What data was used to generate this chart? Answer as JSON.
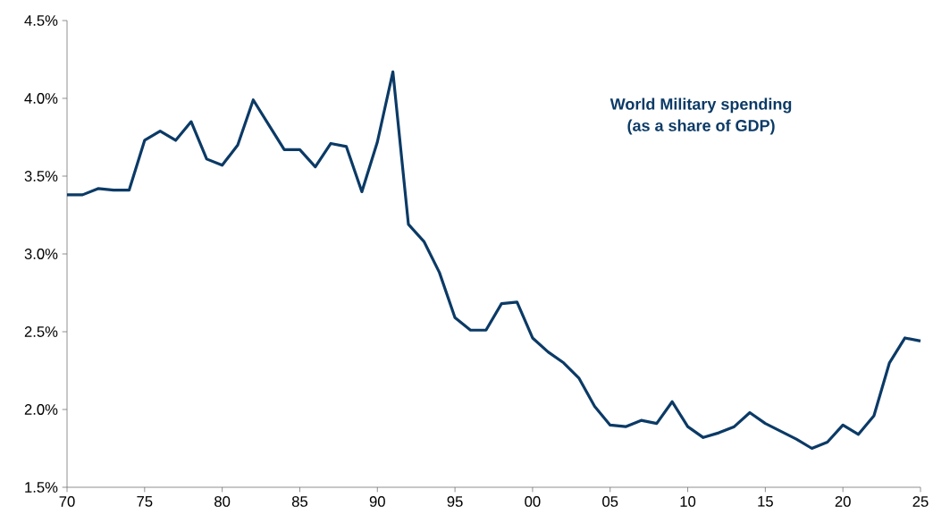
{
  "chart_data": {
    "type": "line",
    "title": "World Military spending",
    "subtitle": "(as a share of GDP)",
    "x": [
      1970,
      1971,
      1972,
      1973,
      1974,
      1975,
      1976,
      1977,
      1978,
      1979,
      1980,
      1981,
      1982,
      1983,
      1984,
      1985,
      1986,
      1987,
      1988,
      1989,
      1990,
      1991,
      1992,
      1993,
      1994,
      1995,
      1996,
      1997,
      1998,
      1999,
      2000,
      2001,
      2002,
      2003,
      2004,
      2005,
      2006,
      2007,
      2008,
      2009,
      2010,
      2011,
      2012,
      2013,
      2014,
      2015,
      2016,
      2017,
      2018,
      2019,
      2020,
      2021,
      2022,
      2023,
      2024,
      2025
    ],
    "series": [
      {
        "color": "#0b3a66",
        "values": [
          3.38,
          3.38,
          3.42,
          3.41,
          3.41,
          3.73,
          3.79,
          3.73,
          3.85,
          3.61,
          3.57,
          3.7,
          3.99,
          3.83,
          3.67,
          3.67,
          3.56,
          3.71,
          3.69,
          3.4,
          3.72,
          4.17,
          3.19,
          3.08,
          2.88,
          2.59,
          2.51,
          2.51,
          2.68,
          2.69,
          2.46,
          2.37,
          2.3,
          2.2,
          2.02,
          1.9,
          1.89,
          1.93,
          1.91,
          2.05,
          1.89,
          1.82,
          1.85,
          1.89,
          1.98,
          1.91,
          1.86,
          1.81,
          1.75,
          1.79,
          1.9,
          1.84,
          1.96,
          2.3,
          2.46,
          2.44
        ]
      }
    ],
    "xlim": [
      1970,
      2025
    ],
    "xticks": [
      {
        "value": 1970,
        "label": "70"
      },
      {
        "value": 1975,
        "label": "75"
      },
      {
        "value": 1980,
        "label": "80"
      },
      {
        "value": 1985,
        "label": "85"
      },
      {
        "value": 1990,
        "label": "90"
      },
      {
        "value": 1995,
        "label": "95"
      },
      {
        "value": 2000,
        "label": "00"
      },
      {
        "value": 2005,
        "label": "05"
      },
      {
        "value": 2010,
        "label": "10"
      },
      {
        "value": 2015,
        "label": "15"
      },
      {
        "value": 2020,
        "label": "20"
      },
      {
        "value": 2025,
        "label": "25"
      }
    ],
    "ylim": [
      1.5,
      4.5
    ],
    "yticks": [
      {
        "value": 1.5,
        "label": "1.5%"
      },
      {
        "value": 2.0,
        "label": "2.0%"
      },
      {
        "value": 2.5,
        "label": "2.5%"
      },
      {
        "value": 3.0,
        "label": "3.0%"
      },
      {
        "value": 3.5,
        "label": "3.5%"
      },
      {
        "value": 4.0,
        "label": "4.0%"
      },
      {
        "value": 4.5,
        "label": "4.5%"
      }
    ],
    "grid": false,
    "marker": "none",
    "line_style": "solid"
  }
}
